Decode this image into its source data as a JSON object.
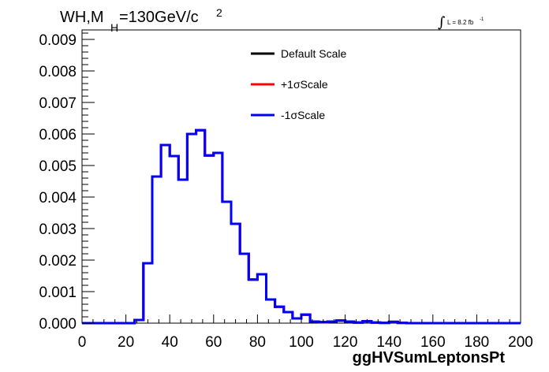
{
  "header": {
    "title_prefix": "WH,M",
    "title_sub": "H",
    "title_suffix": "=130GeV/c",
    "title_sup": "2",
    "lumi_integral": "∫",
    "lumi_text": "L = 8.2 fb",
    "lumi_sup": "-1"
  },
  "chart_data": {
    "type": "line",
    "style": "step-histogram",
    "xlabel": "ggHVSumLeptonsPt",
    "ylabel": "",
    "xlim": [
      0,
      200
    ],
    "ylim": [
      0,
      0.0093
    ],
    "grid": false,
    "legend_position": "top-center",
    "bin_width": 4,
    "x_ticks": [
      0,
      20,
      40,
      60,
      80,
      100,
      120,
      140,
      160,
      180,
      200
    ],
    "y_ticks": [
      0.0,
      0.001,
      0.002,
      0.003,
      0.004,
      0.005,
      0.006,
      0.007,
      0.008,
      0.009
    ],
    "y_tick_labels": [
      "0.000",
      "0.001",
      "0.002",
      "0.003",
      "0.004",
      "0.005",
      "0.006",
      "0.007",
      "0.008",
      "0.009"
    ],
    "x_tick_labels": [
      "0",
      "20",
      "40",
      "60",
      "80",
      "100",
      "120",
      "140",
      "160",
      "180",
      "200"
    ],
    "bin_edges": [
      0,
      4,
      8,
      12,
      16,
      20,
      24,
      28,
      32,
      36,
      40,
      44,
      48,
      52,
      56,
      60,
      64,
      68,
      72,
      76,
      80,
      84,
      88,
      92,
      96,
      100,
      104,
      108,
      112,
      116,
      120,
      124,
      128,
      132,
      136,
      140,
      144,
      148,
      152,
      156,
      160,
      164,
      168,
      172,
      176,
      180,
      184,
      188,
      192,
      196,
      200
    ],
    "series": [
      {
        "name": "Default Scale",
        "color": "#000000",
        "values": [
          0,
          0,
          0,
          0,
          0,
          0,
          0.0001,
          0.0019,
          0.00465,
          0.00565,
          0.0053,
          0.00455,
          0.006,
          0.00612,
          0.00532,
          0.0054,
          0.00385,
          0.00315,
          0.0022,
          0.00138,
          0.00155,
          0.00075,
          0.00052,
          0.00035,
          0.00015,
          0.00027,
          5e-05,
          3e-05,
          5e-05,
          8e-05,
          5e-05,
          2e-05,
          6e-05,
          2e-05,
          1e-05,
          4e-05,
          1e-05,
          0,
          0,
          0,
          0,
          0,
          0,
          0,
          0,
          0,
          0,
          0,
          0,
          0
        ]
      },
      {
        "name": "+1σScale",
        "color": "#ff0000",
        "values": [
          0,
          0,
          0,
          0,
          0,
          0,
          0.0001,
          0.0019,
          0.00465,
          0.00565,
          0.0053,
          0.00455,
          0.006,
          0.00612,
          0.00532,
          0.0054,
          0.00385,
          0.00315,
          0.0022,
          0.00138,
          0.00155,
          0.00075,
          0.00052,
          0.00035,
          0.00015,
          0.00027,
          5e-05,
          3e-05,
          5e-05,
          8e-05,
          5e-05,
          2e-05,
          6e-05,
          2e-05,
          1e-05,
          4e-05,
          1e-05,
          0,
          0,
          0,
          0,
          0,
          0,
          0,
          0,
          0,
          0,
          0,
          0,
          0
        ]
      },
      {
        "name": "-1σScale",
        "color": "#0000ff",
        "values": [
          0,
          0,
          0,
          0,
          0,
          0,
          0.0001,
          0.0019,
          0.00465,
          0.00565,
          0.0053,
          0.00455,
          0.006,
          0.00612,
          0.00532,
          0.0054,
          0.00385,
          0.00315,
          0.0022,
          0.00138,
          0.00155,
          0.00075,
          0.00052,
          0.00035,
          0.00015,
          0.00027,
          5e-05,
          3e-05,
          5e-05,
          8e-05,
          5e-05,
          2e-05,
          6e-05,
          2e-05,
          1e-05,
          4e-05,
          1e-05,
          0,
          0,
          0,
          0,
          0,
          0,
          0,
          0,
          0,
          0,
          0,
          0,
          0
        ]
      }
    ]
  }
}
